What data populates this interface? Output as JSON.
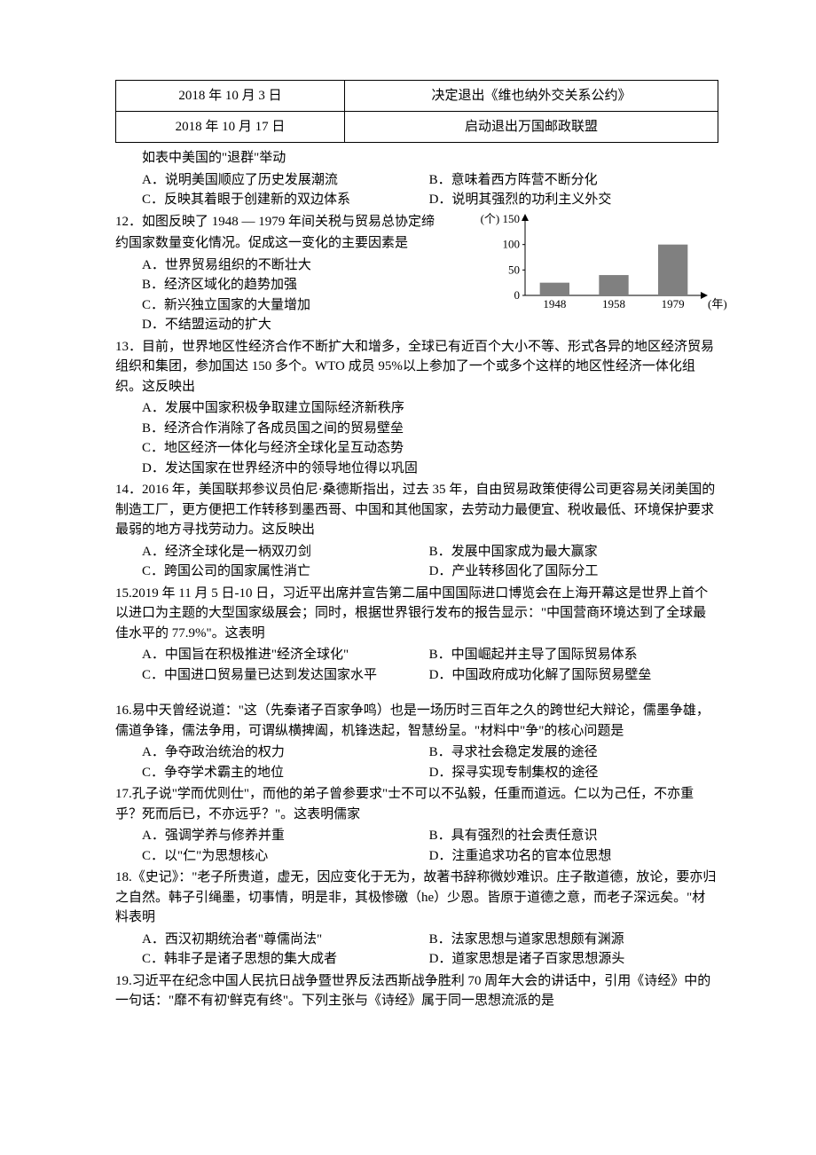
{
  "table": {
    "rows": [
      {
        "date": "2018 年 10 月 3 日",
        "event": "决定退出《维也纳外交关系公约》"
      },
      {
        "date": "2018 年 10 月 17 日",
        "event": "启动退出万国邮政联盟"
      }
    ]
  },
  "q11_tail": {
    "lead": "如表中美国的\"退群\"举动",
    "A": "A．说明美国顺应了历史发展潮流",
    "B": "B．意味着西方阵营不断分化",
    "C": "C．反映其着眼于创建新的双边体系",
    "D": "D．说明其强烈的功利主义外交"
  },
  "q12": {
    "stem1": "12．如图反映了 1948 — 1979 年间关税与贸易总协定缔",
    "stem2": "约国家数量变化情况。促成这一变化的主要因素是",
    "A": "A．世界贸易组织的不断壮大",
    "B": "B．经济区域化的趋势加强",
    "C": "C．新兴独立国家的大量增加",
    "D": "D．不结盟运动的扩大",
    "chart": {
      "type": "bar",
      "categories": [
        "1948",
        "1958",
        "1979"
      ],
      "values": [
        25,
        40,
        100
      ],
      "y_ticks": [
        0,
        50,
        100,
        150
      ],
      "y_unit_label": "(个) 150",
      "x_unit_label": "(年)",
      "bar_color": "#808080",
      "axis_color": "#000000",
      "bg_color": "#ffffff",
      "bar_width": 0.5,
      "label_fontsize": 13
    }
  },
  "q13": {
    "stem": "13．目前，世界地区性经济合作不断扩大和增多，全球已有近百个大小不等、形式各异的地区经济贸易组织和集团，参加国达 150 多个。WTO 成员 95%以上参加了一个或多个这样的地区性经济一体化组织。这反映出",
    "A": "A．发展中国家积极争取建立国际经济新秩序",
    "B": "B．经济合作消除了各成员国之间的贸易壁垒",
    "C": "C．地区经济一体化与经济全球化呈互动态势",
    "D": "D．发达国家在世界经济中的领导地位得以巩固"
  },
  "q14": {
    "stem": "14．2016 年，美国联邦参议员伯尼·桑德斯指出，过去 35 年，自由贸易政策使得公司更容易关闭美国的制造工厂，更方便把工作转移到墨西哥、中国和其他国家，去劳动力最便宜、税收最低、环境保护要求最弱的地方寻找劳动力。这反映出",
    "A": "A．经济全球化是一柄双刃剑",
    "B": "B．发展中国家成为最大赢家",
    "C": "C．跨国公司的国家属性消亡",
    "D": "D．产业转移固化了国际分工"
  },
  "q15": {
    "stem": "15.2019 年 11 月 5 日-10 日，习近平出席并宣告第二届中国国际进口博览会在上海开幕这是世界上首个以进口为主题的大型国家级展会；同时，根据世界银行发布的报告显示：\"中国营商环境达到了全球最佳水平的 77.9%\"。这表明",
    "A": "A．中国旨在积极推进\"经济全球化\"",
    "B": "B．中国崛起并主导了国际贸易体系",
    "C": "C．中国进口贸易量已达到发达国家水平",
    "D": "D．中国政府成功化解了国际贸易壁垒"
  },
  "q16": {
    "stem": "16.易中天曾经说道：\"这（先秦诸子百家争鸣）也是一场历时三百年之久的跨世纪大辩论，儒墨争雄，儒道争锋，儒法争用，可谓纵横捭阖，机锋迭起，智慧纷呈。\"材料中\"争\"的核心问题是",
    "A": "A．争夺政治统治的权力",
    "B": "B．寻求社会稳定发展的途径",
    "C": "C．争夺学术霸主的地位",
    "D": "D．探寻实现专制集权的途径"
  },
  "q17": {
    "stem": "17.孔子说\"学而优则仕\"，而他的弟子曾参要求\"士不可以不弘毅，任重而道远。仁以为己任，不亦重乎？死而后已，不亦远乎？\"。这表明儒家",
    "A": "A．强调学养与修养并重",
    "B": "B．具有强烈的社会责任意识",
    "C": "C．以\"仁\"为思想核心",
    "D": "D．注重追求功名的官本位思想"
  },
  "q18": {
    "stem": "18.《史记》：\"老子所贵道，虚无，因应变化于无为，故著书辞称微妙难识。庄子散道德，放论，要亦归之自然。韩子引绳墨，切事情，明是非，其极惨礉（he）少恩。皆原于道德之意，而老子深远矣。\"材料表明",
    "A": "A．西汉初期统治者\"尊儒尚法\"",
    "B": "B．法家思想与道家思想颇有渊源",
    "C": "C．韩非子是诸子思想的集大成者",
    "D": "D．道家思想是诸子百家思想源头"
  },
  "q19": {
    "stem": "19.习近平在纪念中国人民抗日战争暨世界反法西斯战争胜利 70 周年大会的讲话中，引用《诗经》中的一句话：\"靡不有初'鲜克有终\"。下列主张与《诗经》属于同一思想流派的是"
  }
}
